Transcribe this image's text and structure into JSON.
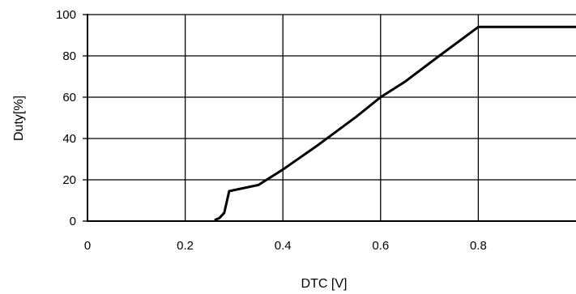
{
  "chart_data": {
    "type": "line",
    "title": "",
    "xlabel": "DTC [V]",
    "ylabel": "Duty[%]",
    "xlim": [
      0,
      1.0
    ],
    "ylim": [
      0,
      100
    ],
    "x_ticks": [
      "0",
      "0.2",
      "0.4",
      "0.6",
      "0.8"
    ],
    "y_ticks": [
      "0",
      "20",
      "40",
      "60",
      "80",
      "100"
    ],
    "x_tick_values": [
      0,
      0.2,
      0.4,
      0.6,
      0.8
    ],
    "y_tick_values": [
      0,
      20,
      40,
      60,
      80,
      100
    ],
    "grid": true,
    "legend": "none",
    "series": [
      {
        "x": [
          0.26,
          0.27,
          0.28,
          0.29,
          0.35,
          0.4,
          0.47,
          0.55,
          0.6,
          0.65,
          0.72,
          0.8,
          1.0
        ],
        "y": [
          0.5,
          1.5,
          4,
          14.5,
          17.5,
          25,
          36.5,
          50.5,
          60,
          67.5,
          80,
          94,
          94
        ],
        "color": "#000000"
      }
    ]
  }
}
